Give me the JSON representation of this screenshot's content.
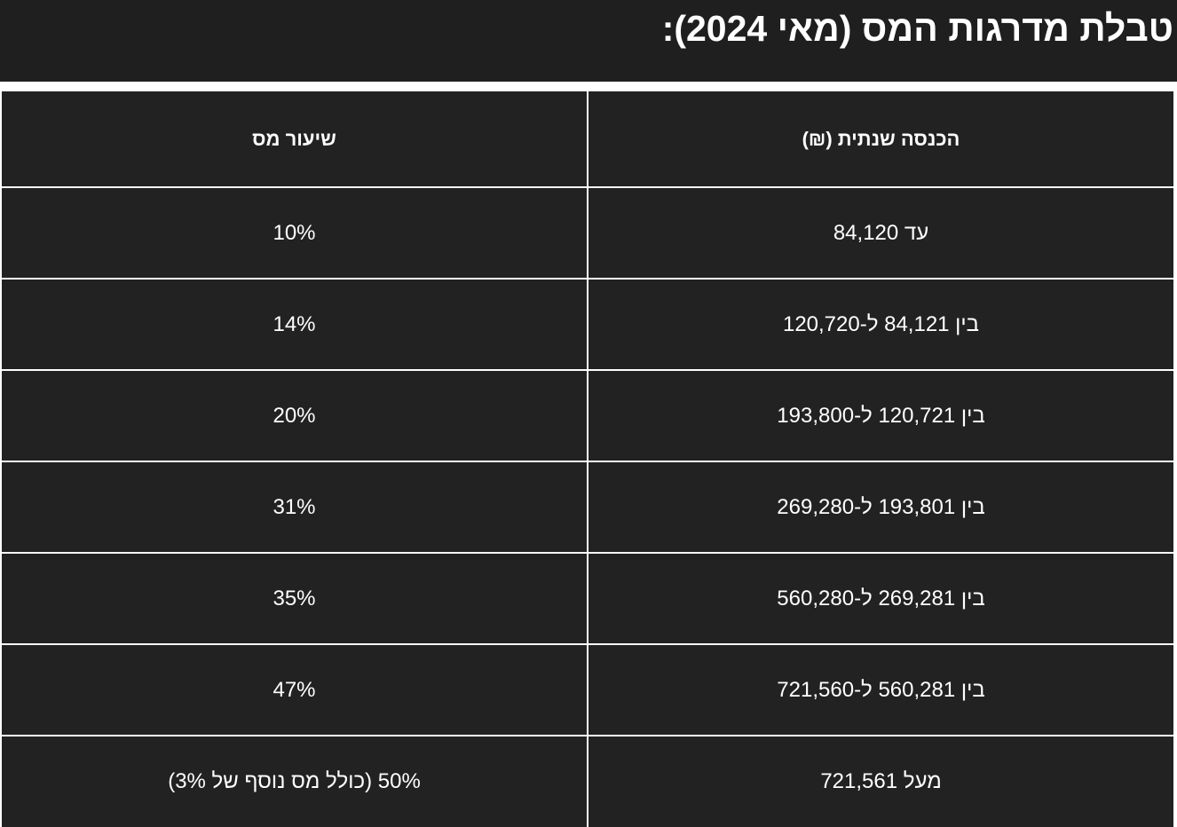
{
  "page": {
    "title": "טבלת מדרגות המס (מאי 2024):"
  },
  "table": {
    "headers": {
      "income": "הכנסה שנתית (₪)",
      "rate": "שיעור מס"
    },
    "rows": [
      {
        "income": "עד 84,120",
        "rate": "10%"
      },
      {
        "income": "בין 84,121 ל-120,720",
        "rate": "14%"
      },
      {
        "income": "בין 120,721 ל-193,800",
        "rate": "20%"
      },
      {
        "income": "בין 193,801 ל-269,280",
        "rate": "31%"
      },
      {
        "income": "בין 269,281 ל-560,280",
        "rate": "35%"
      },
      {
        "income": "בין 560,281 ל-721,560",
        "rate": "47%"
      },
      {
        "income": "מעל 721,561",
        "rate": "50% (כולל מס נוסף של 3%)"
      }
    ]
  },
  "colors": {
    "background": "#1f1f1f",
    "cell": "#222222",
    "grid": "#ffffff",
    "text": "#ffffff"
  }
}
